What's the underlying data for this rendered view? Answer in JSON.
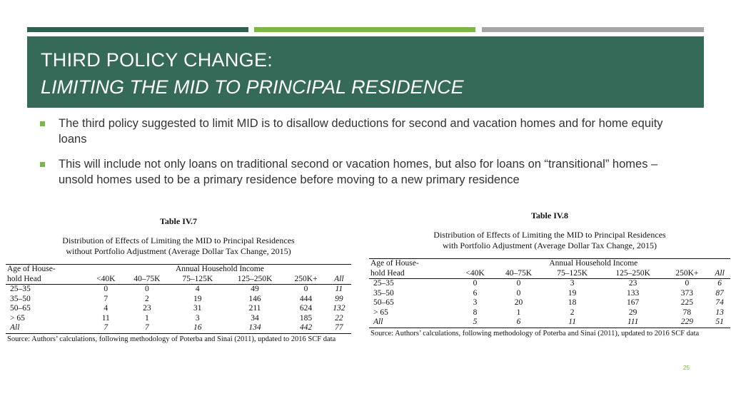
{
  "slide": {
    "title_line1": "THIRD POLICY CHANGE:",
    "title_line2": "LIMITING THE MID TO PRINCIPAL RESIDENCE",
    "bullets": [
      "The third policy suggested to limit MID is to disallow deductions for second and vacation homes and for home equity loans",
      "This will include not only loans on traditional second or vacation homes, but also for loans on “transitional” homes – unsold homes used to be a primary residence before moving to a new primary residence"
    ],
    "page_number": "25",
    "colors": {
      "header_bg": "#356a58",
      "accent_green": "#7ab648",
      "dark_green": "#2f6150",
      "gray": "#a6a6a6"
    }
  },
  "tables": [
    {
      "title": "Table IV.7",
      "caption_line1": "Distribution of Effects of Limiting the MID to Principal Residences",
      "caption_line2": "without Portfolio Adjustment (Average Dollar Tax Change, 2015)",
      "row_header_line1": "Age of House-",
      "row_header_line2": "hold Head",
      "group_header": "Annual Household Income",
      "columns": [
        "<40K",
        "40–75K",
        "75–125K",
        "125–250K",
        "250K+",
        "All"
      ],
      "rows": [
        {
          "label": "25–35",
          "values": [
            "0",
            "0",
            "4",
            "49",
            "0",
            "11"
          ]
        },
        {
          "label": "35–50",
          "values": [
            "7",
            "2",
            "19",
            "146",
            "444",
            "99"
          ]
        },
        {
          "label": "50–65",
          "values": [
            "4",
            "23",
            "31",
            "211",
            "624",
            "132"
          ]
        },
        {
          "label": "> 65",
          "values": [
            "11",
            "1",
            "3",
            "34",
            "185",
            "22"
          ]
        },
        {
          "label": "All",
          "values": [
            "7",
            "7",
            "16",
            "134",
            "442",
            "77"
          ]
        }
      ],
      "source": "Source: Authors’ calculations, following methodology of Poterba and Sinai (2011), updated to 2016 SCF data"
    },
    {
      "title": "Table IV.8",
      "caption_line1": "Distribution of Effects of Limiting the MID to Principal Residences",
      "caption_line2": "with Portfolio Adjustment (Average Dollar Tax Change, 2015)",
      "row_header_line1": "Age of House-",
      "row_header_line2": "hold Head",
      "group_header": "Annual Household Income",
      "columns": [
        "<40K",
        "40–75K",
        "75–125K",
        "125–250K",
        "250K+",
        "All"
      ],
      "rows": [
        {
          "label": "25–35",
          "values": [
            "0",
            "0",
            "3",
            "23",
            "0",
            "6"
          ]
        },
        {
          "label": "35–50",
          "values": [
            "6",
            "0",
            "19",
            "133",
            "373",
            "87"
          ]
        },
        {
          "label": "50–65",
          "values": [
            "3",
            "20",
            "18",
            "167",
            "225",
            "74"
          ]
        },
        {
          "label": "> 65",
          "values": [
            "8",
            "1",
            "2",
            "29",
            "78",
            "13"
          ]
        },
        {
          "label": "All",
          "values": [
            "5",
            "6",
            "11",
            "111",
            "229",
            "51"
          ]
        }
      ],
      "source": "Source: Authors’ calculations, following methodology of Poterba and Sinai (2011), updated to 2016 SCF data"
    }
  ]
}
